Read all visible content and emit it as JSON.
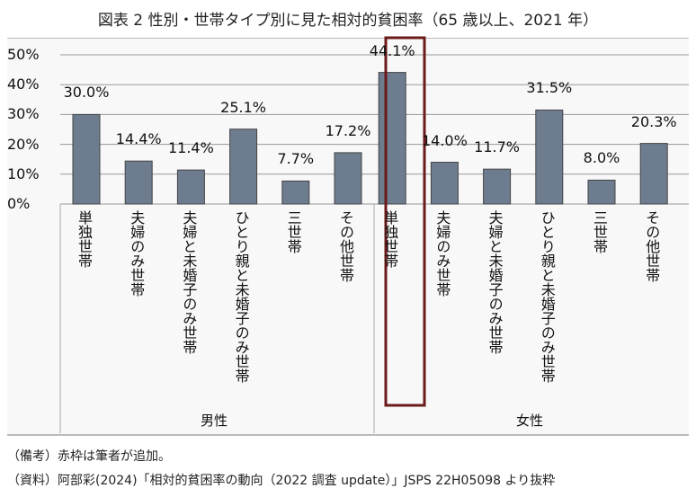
{
  "title": "図表 2  性別・世帯タイプ別に見た相対的貧困率（65 歳以上、2021 年）",
  "notes": {
    "remark": "（備考）赤枠は筆者が追加。",
    "source": "（資料）阿部彩(2024)「相対的貧困率の動向（2022 調査 update）」JSPS 22H05098  より抜粋"
  },
  "chart_data": {
    "type": "bar",
    "title": "図表 2  性別・世帯タイプ別に見た相対的貧困率（65 歳以上、2021 年）",
    "groups": [
      "男性",
      "女性"
    ],
    "categories": [
      "単独世帯",
      "夫婦のみ世帯",
      "夫婦と未婚子のみ世帯",
      "ひとり親と未婚子のみ世帯",
      "三世帯",
      "その他世帯"
    ],
    "series": [
      {
        "group": "男性",
        "values": [
          30.0,
          14.4,
          11.4,
          25.1,
          7.7,
          17.2
        ]
      },
      {
        "group": "女性",
        "values": [
          44.1,
          14.0,
          11.7,
          31.5,
          8.0,
          20.3
        ]
      }
    ],
    "value_labels": [
      [
        "30.0%",
        "14.4%",
        "11.4%",
        "25.1%",
        "7.7%",
        "17.2%"
      ],
      [
        "44.1%",
        "14.0%",
        "11.7%",
        "31.5%",
        "8.0%",
        "20.3%"
      ]
    ],
    "y_ticks": [
      "0%",
      "10%",
      "20%",
      "30%",
      "40%",
      "50%"
    ],
    "ylim": [
      0,
      50
    ],
    "grid": true,
    "highlight": {
      "group": "女性",
      "category": "単独世帯",
      "color": "#6b1a1a"
    },
    "bar_color": "#6d7c8f"
  }
}
